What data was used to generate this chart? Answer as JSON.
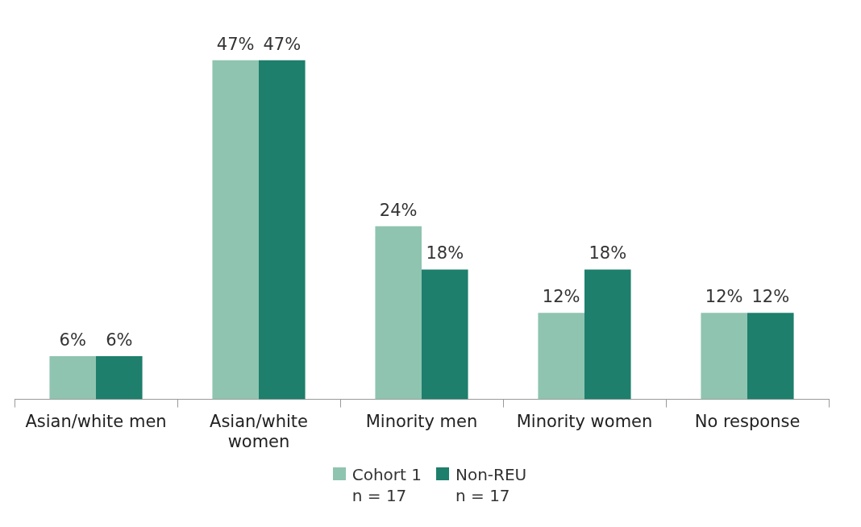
{
  "chart_data": {
    "type": "bar",
    "categories": [
      "Asian/white men",
      "Asian/white\nwomen",
      "Minority men",
      "Minority women",
      "No response"
    ],
    "series": [
      {
        "name": "Cohort 1\nn = 17",
        "color": "#8fc4b0",
        "values": [
          6,
          47,
          24,
          12,
          12
        ],
        "value_labels": [
          "6%",
          "47%",
          "24%",
          "12%",
          "12%"
        ]
      },
      {
        "name": "Non-REU\nn = 17",
        "color": "#1d7f6c",
        "values": [
          6,
          47,
          18,
          18,
          12
        ],
        "value_labels": [
          "6%",
          "47%",
          "18%",
          "18%",
          "12%"
        ]
      }
    ],
    "legend": "bottom",
    "grid": false
  }
}
